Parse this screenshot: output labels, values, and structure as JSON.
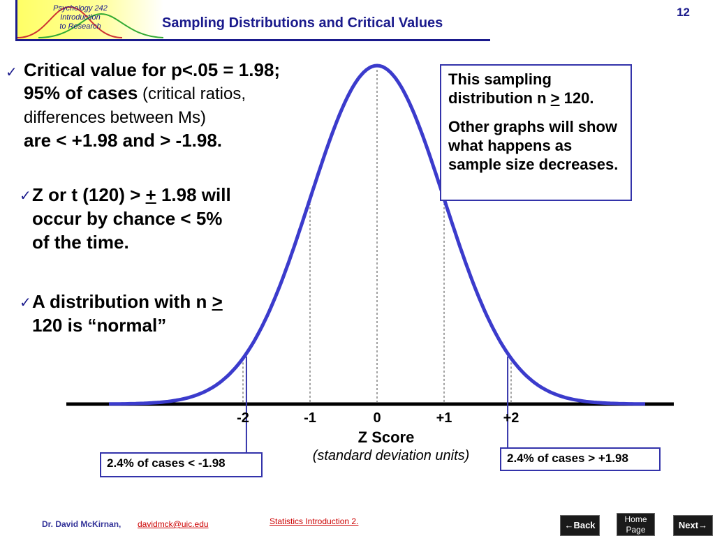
{
  "header": {
    "logo_lines": [
      "Psychology 242",
      "Introduction",
      "to Research"
    ],
    "title": "Sampling Distributions and Critical Values",
    "slide_number": "12"
  },
  "bullet_main": {
    "part1": "Critical value for p<.05 = 1.98; 95% of cases",
    "part2": " (critical ratios, differences between Ms)",
    "part3": "are <  +1.98 and > -1.98."
  },
  "sub_bullets": [
    {
      "line_a": "Z or t (120) > ",
      "line_u": "+",
      "line_b": " 1.98 will occur by chance < 5% of the time."
    },
    {
      "line_a": "A distribution with n ",
      "line_u": ">",
      "line_b": " 120 is “normal”"
    }
  ],
  "info_box": {
    "p1_a": "This sampling distribution n ",
    "p1_u": ">",
    "p1_b": " 120.",
    "p2": "Other graphs will show what happens as sample size decreases."
  },
  "chart_data": {
    "type": "line",
    "title": "",
    "xlabel": "Z Score",
    "xlabel_sub": "(standard deviation units)",
    "ylabel": "",
    "tick_labels": [
      "-2",
      "-1",
      "0",
      "+1",
      "+2"
    ],
    "x_ticks": [
      -2,
      -1,
      0,
      1,
      2
    ],
    "xlim": [
      -4,
      4
    ],
    "critical_values": [
      -1.98,
      1.98
    ],
    "series": [
      {
        "distribution": "normal",
        "mean": 0,
        "sd": 1
      }
    ],
    "annotations": [
      "2.4% of cases <  -1.98",
      "2.4% of cases > +1.98"
    ],
    "grid": false
  },
  "footer": {
    "author": "Dr. David McKirnan,",
    "email": "davidmck@uic.edu",
    "middle": "Statistics Introduction 2.",
    "back": "←Back",
    "home": [
      "Home",
      "Page"
    ],
    "next": "Next→"
  },
  "colors": {
    "accent": "#1a1a8c",
    "curve": "#3b3bcc",
    "link": "#cc0000"
  }
}
